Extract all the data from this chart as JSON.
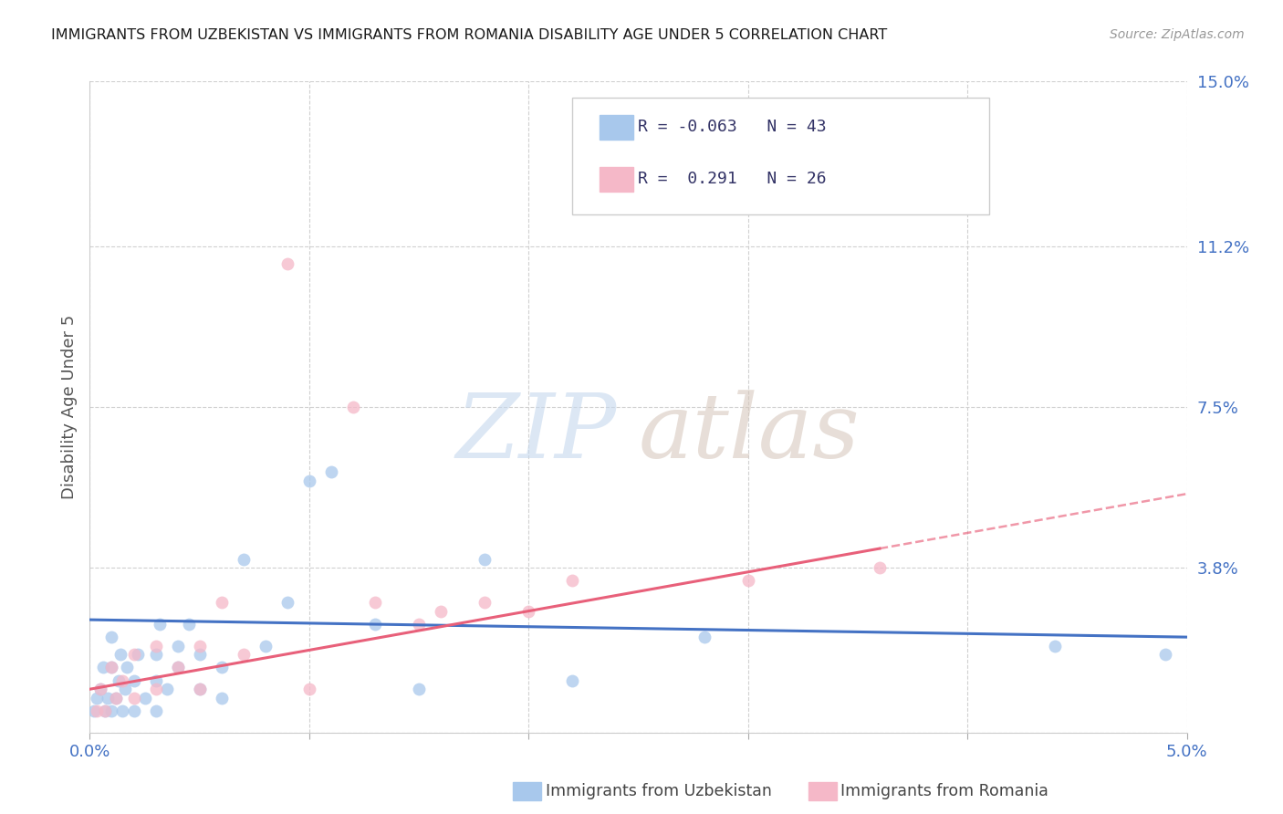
{
  "title": "IMMIGRANTS FROM UZBEKISTAN VS IMMIGRANTS FROM ROMANIA DISABILITY AGE UNDER 5 CORRELATION CHART",
  "source": "Source: ZipAtlas.com",
  "ylabel": "Disability Age Under 5",
  "xlim": [
    0.0,
    0.05
  ],
  "ylim": [
    0.0,
    0.15
  ],
  "yticks": [
    0.0,
    0.038,
    0.075,
    0.112,
    0.15
  ],
  "ytick_labels": [
    "",
    "3.8%",
    "7.5%",
    "11.2%",
    "15.0%"
  ],
  "xtick_vals": [
    0.0,
    0.01,
    0.02,
    0.03,
    0.04,
    0.05
  ],
  "xtick_labels": [
    "0.0%",
    "",
    "",
    "",
    "",
    "5.0%"
  ],
  "legend_bottom_1": "Immigrants from Uzbekistan",
  "legend_bottom_2": "Immigrants from Romania",
  "watermark_zip": "ZIP",
  "watermark_atlas": "atlas",
  "uzbekistan_x": [
    0.0002,
    0.0003,
    0.0005,
    0.0006,
    0.0007,
    0.0008,
    0.001,
    0.001,
    0.001,
    0.0012,
    0.0013,
    0.0014,
    0.0015,
    0.0016,
    0.0017,
    0.002,
    0.002,
    0.0022,
    0.0025,
    0.003,
    0.003,
    0.003,
    0.0032,
    0.0035,
    0.004,
    0.004,
    0.0045,
    0.005,
    0.005,
    0.006,
    0.006,
    0.007,
    0.008,
    0.009,
    0.01,
    0.011,
    0.013,
    0.015,
    0.018,
    0.022,
    0.028,
    0.044,
    0.049
  ],
  "uzbekistan_y": [
    0.005,
    0.008,
    0.01,
    0.015,
    0.005,
    0.008,
    0.005,
    0.015,
    0.022,
    0.008,
    0.012,
    0.018,
    0.005,
    0.01,
    0.015,
    0.005,
    0.012,
    0.018,
    0.008,
    0.005,
    0.012,
    0.018,
    0.025,
    0.01,
    0.015,
    0.02,
    0.025,
    0.01,
    0.018,
    0.008,
    0.015,
    0.04,
    0.02,
    0.03,
    0.058,
    0.06,
    0.025,
    0.01,
    0.04,
    0.012,
    0.022,
    0.02,
    0.018
  ],
  "romania_x": [
    0.0003,
    0.0005,
    0.0007,
    0.001,
    0.0012,
    0.0015,
    0.002,
    0.002,
    0.003,
    0.003,
    0.004,
    0.005,
    0.005,
    0.006,
    0.007,
    0.009,
    0.01,
    0.012,
    0.013,
    0.015,
    0.016,
    0.018,
    0.02,
    0.022,
    0.03,
    0.036
  ],
  "romania_y": [
    0.005,
    0.01,
    0.005,
    0.015,
    0.008,
    0.012,
    0.008,
    0.018,
    0.01,
    0.02,
    0.015,
    0.01,
    0.02,
    0.03,
    0.018,
    0.108,
    0.01,
    0.075,
    0.03,
    0.025,
    0.028,
    0.03,
    0.028,
    0.035,
    0.035,
    0.038
  ],
  "uzbekistan_line_color": "#4472c4",
  "romania_line_color": "#e8607a",
  "uzbekistan_scatter_color": "#a8c8ec",
  "romania_scatter_color": "#f5b8c8",
  "background_color": "#ffffff",
  "grid_color": "#d0d0d0",
  "title_color": "#1a1a1a",
  "axis_tick_color": "#4472c4",
  "ylabel_color": "#555555",
  "marker_size": 100,
  "uz_R": -0.063,
  "uz_N": 43,
  "ro_R": 0.291,
  "ro_N": 26
}
